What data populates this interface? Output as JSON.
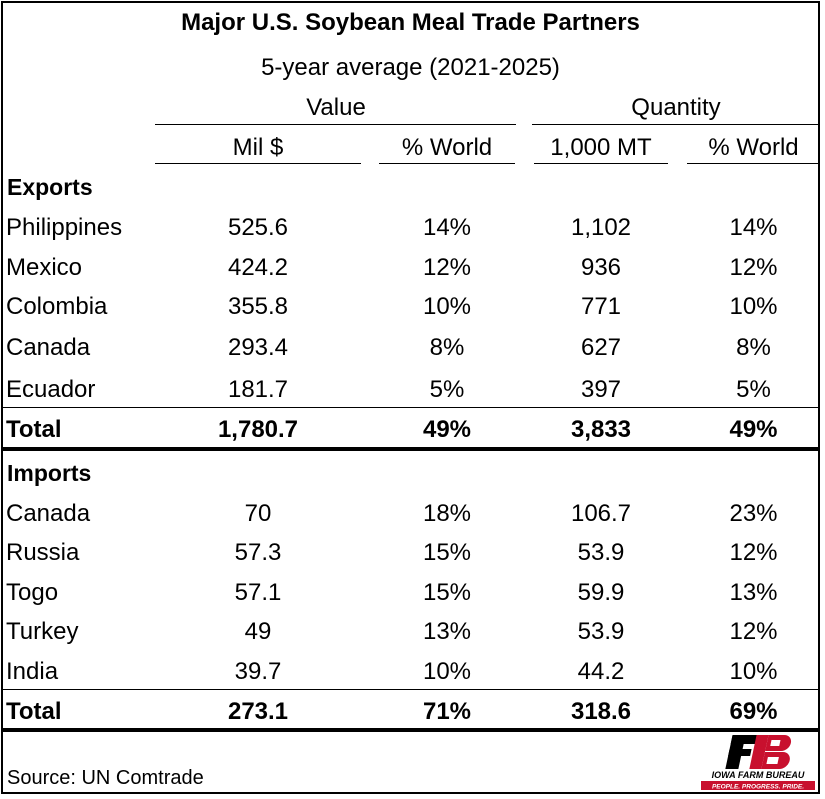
{
  "title": "Major U.S. Soybean Meal Trade Partners",
  "subtitle": "5-year average (2021-2025)",
  "groups": {
    "value": "Value",
    "quantity": "Quantity"
  },
  "columns": [
    "Mil $",
    "% World",
    "1,000 MT",
    "% World"
  ],
  "exports": {
    "label": "Exports",
    "rows": [
      {
        "country": "Philippines",
        "mil": "525.6",
        "pct_value": "14%",
        "mt": "1,102",
        "pct_qty": "14%"
      },
      {
        "country": "Mexico",
        "mil": "424.2",
        "pct_value": "12%",
        "mt": "936",
        "pct_qty": "12%"
      },
      {
        "country": "Colombia",
        "mil": "355.8",
        "pct_value": "10%",
        "mt": "771",
        "pct_qty": "10%"
      },
      {
        "country": "Canada",
        "mil": "293.4",
        "pct_value": "8%",
        "mt": "627",
        "pct_qty": "8%"
      },
      {
        "country": "Ecuador",
        "mil": "181.7",
        "pct_value": "5%",
        "mt": "397",
        "pct_qty": "5%"
      }
    ],
    "total": {
      "country": "Total",
      "mil": "1,780.7",
      "pct_value": "49%",
      "mt": "3,833",
      "pct_qty": "49%"
    }
  },
  "imports": {
    "label": "Imports",
    "rows": [
      {
        "country": "Canada",
        "mil": "70",
        "pct_value": "18%",
        "mt": "106.7",
        "pct_qty": "23%"
      },
      {
        "country": "Russia",
        "mil": "57.3",
        "pct_value": "15%",
        "mt": "53.9",
        "pct_qty": "12%"
      },
      {
        "country": "Togo",
        "mil": "57.1",
        "pct_value": "15%",
        "mt": "59.9",
        "pct_qty": "13%"
      },
      {
        "country": "Turkey",
        "mil": "49",
        "pct_value": "13%",
        "mt": "53.9",
        "pct_qty": "12%"
      },
      {
        "country": "India",
        "mil": "39.7",
        "pct_value": "10%",
        "mt": "44.2",
        "pct_qty": "10%"
      }
    ],
    "total": {
      "country": "Total",
      "mil": "273.1",
      "pct_value": "71%",
      "mt": "318.6",
      "pct_qty": "69%"
    }
  },
  "source": "Source: UN Comtrade",
  "logo": {
    "mark": "FB",
    "name": "IOWA FARM BUREAU",
    "tagline": "PEOPLE. PROGRESS. PRIDE.",
    "colors": {
      "red": "#c8102e",
      "black": "#000000"
    }
  }
}
